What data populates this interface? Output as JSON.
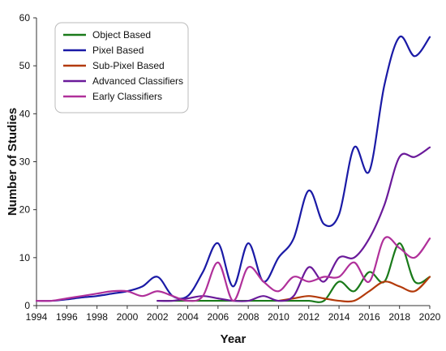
{
  "chart_data": {
    "type": "line",
    "title": "",
    "xlabel": "Year",
    "ylabel": "Number of Studies",
    "xlim": [
      1994,
      2020
    ],
    "ylim": [
      0,
      60
    ],
    "x_ticks": [
      1994,
      1996,
      1998,
      2000,
      2002,
      2004,
      2006,
      2008,
      2010,
      2012,
      2014,
      2016,
      2018,
      2020
    ],
    "y_ticks": [
      0,
      10,
      20,
      30,
      40,
      50,
      60
    ],
    "grid": false,
    "legend_position": "top-left",
    "series": [
      {
        "name": "Object Based",
        "color": "#1a7a1a",
        "x": [
          2002,
          2003,
          2004,
          2005,
          2006,
          2007,
          2008,
          2009,
          2010,
          2011,
          2012,
          2013,
          2014,
          2015,
          2016,
          2017,
          2018,
          2019,
          2020
        ],
        "y": [
          1,
          1,
          1,
          1,
          1,
          1,
          1,
          1,
          1,
          1,
          1,
          1,
          5,
          3,
          7,
          5,
          13,
          5,
          6
        ]
      },
      {
        "name": "Pixel Based",
        "color": "#1a1aa6",
        "x": [
          1994,
          1995,
          1996,
          1997,
          1998,
          1999,
          2000,
          2001,
          2002,
          2003,
          2004,
          2005,
          2006,
          2007,
          2008,
          2009,
          2010,
          2011,
          2012,
          2013,
          2014,
          2015,
          2016,
          2017,
          2018,
          2019,
          2020
        ],
        "y": [
          1,
          1,
          1.3,
          1.7,
          2,
          2.5,
          3,
          4,
          6,
          2,
          2,
          7,
          13,
          4,
          13,
          5,
          10,
          14,
          24,
          17,
          19,
          33,
          28,
          46,
          56,
          52,
          56
        ]
      },
      {
        "name": "Sub-Pixel Based",
        "color": "#b33a0a",
        "x": [
          2010,
          2011,
          2012,
          2013,
          2014,
          2015,
          2016,
          2017,
          2018,
          2019,
          2020
        ],
        "y": [
          1,
          1.5,
          2,
          1.5,
          1,
          1,
          3,
          5,
          4,
          3,
          6
        ]
      },
      {
        "name": "Advanced Classifiers",
        "color": "#6a1a9a",
        "x": [
          2002,
          2003,
          2004,
          2005,
          2006,
          2007,
          2008,
          2009,
          2010,
          2011,
          2012,
          2013,
          2014,
          2015,
          2016,
          2017,
          2018,
          2019,
          2020
        ],
        "y": [
          1,
          1,
          1.5,
          2,
          1.5,
          1,
          1,
          2,
          1,
          2,
          8,
          5,
          10,
          10,
          14,
          21,
          31,
          31,
          33
        ]
      },
      {
        "name": "Early Classifiers",
        "color": "#b0309a",
        "x": [
          1994,
          1995,
          1996,
          1997,
          1998,
          1999,
          2000,
          2001,
          2002,
          2003,
          2004,
          2005,
          2006,
          2007,
          2008,
          2009,
          2010,
          2011,
          2012,
          2013,
          2014,
          2015,
          2016,
          2017,
          2018,
          2019,
          2020
        ],
        "y": [
          1,
          1,
          1.5,
          2,
          2.5,
          3,
          3,
          2,
          3,
          2,
          1,
          2,
          9,
          1,
          8,
          5,
          3,
          6,
          5,
          6,
          6,
          9,
          5,
          14,
          12,
          10,
          14
        ]
      }
    ]
  }
}
